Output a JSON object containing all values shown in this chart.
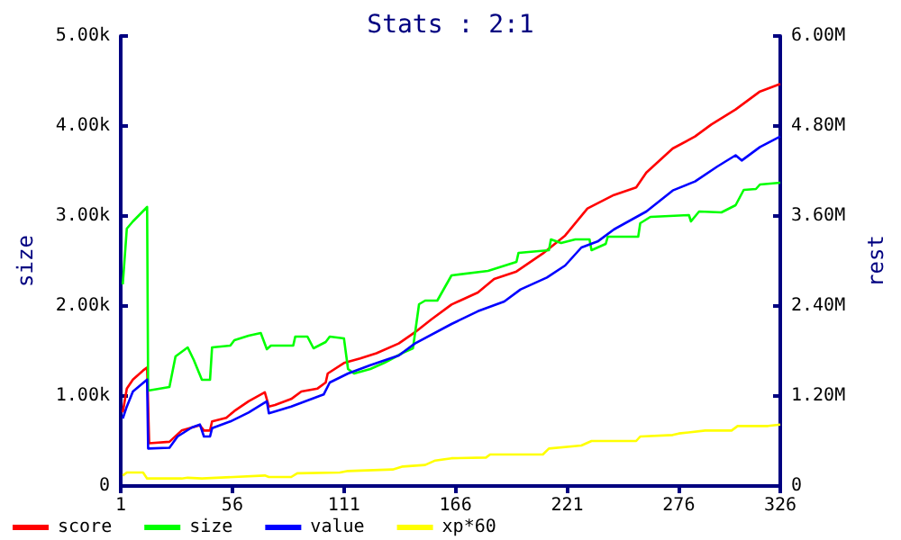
{
  "chart_data": {
    "type": "line",
    "title": "Stats : 2:1",
    "ylabel": "size",
    "y2label": "rest",
    "legend": "bottom left",
    "grid": false,
    "marker": "none",
    "line_style": "solid",
    "xlim": [
      1,
      326
    ],
    "xticks": [
      1,
      56,
      111,
      166,
      221,
      276,
      326
    ],
    "ylim": [
      0,
      5000
    ],
    "yticks": [
      {
        "value": 0,
        "label": "0"
      },
      {
        "value": 1000,
        "label": "1.00k"
      },
      {
        "value": 2000,
        "label": "2.00k"
      },
      {
        "value": 3000,
        "label": "3.00k"
      },
      {
        "value": 4000,
        "label": "4.00k"
      },
      {
        "value": 5000,
        "label": "5.00k"
      }
    ],
    "y2lim": [
      0,
      6000000
    ],
    "y2ticks": [
      {
        "value": 0,
        "label": "0"
      },
      {
        "value": 1200000,
        "label": "1.20M"
      },
      {
        "value": 2400000,
        "label": "2.40M"
      },
      {
        "value": 3600000,
        "label": "3.60M"
      },
      {
        "value": 4800000,
        "label": "4.80M"
      },
      {
        "value": 6000000,
        "label": "6.00M"
      }
    ],
    "series": [
      {
        "name": "score",
        "color": "#ff0000",
        "axis": "y2",
        "x": [
          2,
          4,
          7,
          12,
          14,
          15,
          25,
          31,
          40,
          42,
          45,
          46,
          53,
          57,
          64,
          72,
          74,
          77,
          85,
          90,
          98,
          102,
          103,
          111,
          119,
          127,
          138,
          146,
          154,
          164,
          177,
          185,
          196,
          209,
          220,
          231,
          244,
          255,
          260,
          273,
          284,
          292,
          304,
          316,
          326
        ],
        "values": [
          980000,
          1300000,
          1420000,
          1540000,
          1580000,
          570000,
          590000,
          740000,
          810000,
          740000,
          740000,
          860000,
          910000,
          1000000,
          1130000,
          1250000,
          1060000,
          1080000,
          1160000,
          1260000,
          1300000,
          1380000,
          1500000,
          1640000,
          1700000,
          1770000,
          1900000,
          2050000,
          2220000,
          2420000,
          2580000,
          2760000,
          2860000,
          3100000,
          3340000,
          3700000,
          3880000,
          3980000,
          4180000,
          4500000,
          4660000,
          4820000,
          5020000,
          5260000,
          5360000
        ]
      },
      {
        "name": "size",
        "color": "#00ff00",
        "x": [
          2,
          4,
          7,
          14,
          14.5,
          25,
          28,
          34,
          37,
          41,
          45,
          46,
          55,
          57,
          64,
          70,
          73,
          75,
          86,
          87,
          93,
          96,
          102,
          104,
          111,
          113,
          116,
          124,
          131,
          136,
          140,
          145,
          148,
          151,
          157,
          160,
          164,
          182,
          196,
          197,
          212,
          213,
          218,
          225,
          232,
          233,
          240,
          241,
          256,
          257,
          262,
          281,
          282,
          286,
          297,
          304,
          308,
          314,
          316,
          326
        ],
        "values": [
          2240,
          2860,
          2940,
          3100,
          1060,
          1100,
          1440,
          1540,
          1400,
          1180,
          1180,
          1540,
          1560,
          1620,
          1670,
          1700,
          1520,
          1560,
          1560,
          1660,
          1660,
          1530,
          1600,
          1660,
          1640,
          1300,
          1250,
          1300,
          1370,
          1430,
          1480,
          1530,
          2020,
          2060,
          2060,
          2180,
          2340,
          2390,
          2490,
          2590,
          2620,
          2740,
          2700,
          2740,
          2740,
          2620,
          2690,
          2770,
          2770,
          2920,
          2990,
          3010,
          2940,
          3050,
          3040,
          3120,
          3290,
          3300,
          3350,
          3370
        ]
      },
      {
        "name": "value",
        "color": "#0000ff",
        "axis": "y2",
        "x": [
          2,
          4,
          7,
          14,
          14.5,
          25,
          29,
          36,
          40,
          42,
          45,
          46,
          55,
          64,
          73,
          74,
          85,
          93,
          101,
          104,
          113,
          124,
          138,
          146,
          164,
          177,
          190,
          198,
          211,
          220,
          228,
          236,
          244,
          260,
          273,
          284,
          295,
          304,
          307,
          316,
          326
        ],
        "values": [
          900000,
          1060000,
          1260000,
          1420000,
          500000,
          510000,
          660000,
          780000,
          820000,
          660000,
          660000,
          770000,
          860000,
          980000,
          1130000,
          970000,
          1060000,
          1140000,
          1220000,
          1380000,
          1500000,
          1610000,
          1740000,
          1900000,
          2160000,
          2330000,
          2460000,
          2620000,
          2780000,
          2940000,
          3180000,
          3260000,
          3420000,
          3660000,
          3940000,
          4060000,
          4260000,
          4410000,
          4340000,
          4520000,
          4660000
        ]
      },
      {
        "name": "xp*60",
        "color": "#ffff00",
        "axis": "y2",
        "x": [
          2,
          4,
          12,
          14,
          31,
          34,
          41,
          72,
          74,
          85,
          88,
          109,
          113,
          135,
          140,
          151,
          156,
          164,
          181,
          183,
          209,
          212,
          228,
          233,
          255,
          257,
          273,
          276,
          289,
          302,
          305,
          320,
          326
        ],
        "values": [
          140000,
          180000,
          180000,
          100000,
          100000,
          110000,
          100000,
          140000,
          120000,
          120000,
          170000,
          180000,
          200000,
          220000,
          260000,
          280000,
          340000,
          370000,
          380000,
          420000,
          420000,
          500000,
          540000,
          600000,
          600000,
          660000,
          680000,
          700000,
          740000,
          740000,
          800000,
          800000,
          820000
        ]
      }
    ]
  }
}
